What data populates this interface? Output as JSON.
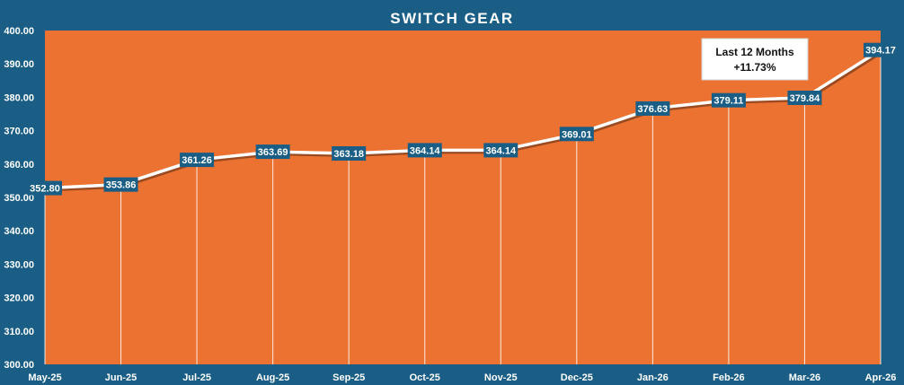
{
  "chart_data": {
    "type": "line",
    "title": "SWITCH GEAR",
    "categories": [
      "May-25",
      "Jun-25",
      "Jul-25",
      "Aug-25",
      "Sep-25",
      "Oct-25",
      "Nov-25",
      "Dec-25",
      "Jan-26",
      "Feb-26",
      "Mar-26",
      "Apr-26"
    ],
    "values": [
      352.8,
      353.86,
      361.26,
      363.69,
      363.18,
      364.14,
      364.14,
      369.01,
      376.63,
      379.11,
      379.84,
      394.17
    ],
    "value_labels": [
      "352.80",
      "353.86",
      "361.26",
      "363.69",
      "363.18",
      "364.14",
      "364.14",
      "369.01",
      "376.63",
      "379.11",
      "379.84",
      "394.17"
    ],
    "yticks": [
      "300.00",
      "310.00",
      "320.00",
      "330.00",
      "340.00",
      "350.00",
      "360.00",
      "370.00",
      "380.00",
      "390.00",
      "400.00"
    ],
    "ylim": [
      300,
      400
    ],
    "xlabel": "",
    "ylabel": "",
    "grid": false,
    "drop_lines": true,
    "annotation": {
      "line1": "Last 12 Months",
      "line2": "+11.73%"
    },
    "colors": {
      "background": "#1a5e86",
      "plot_area": "#ec7232",
      "line": "#ffffff",
      "label_box": "#1a5e86",
      "annotation_box": "#ffffff"
    }
  }
}
